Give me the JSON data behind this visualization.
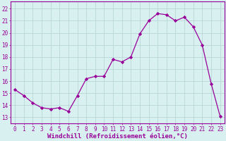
{
  "x": [
    0,
    1,
    2,
    3,
    4,
    5,
    6,
    7,
    8,
    9,
    10,
    11,
    12,
    13,
    14,
    15,
    16,
    17,
    18,
    19,
    20,
    21,
    22,
    23
  ],
  "y": [
    15.3,
    14.8,
    14.2,
    13.8,
    13.7,
    13.8,
    13.5,
    14.8,
    16.2,
    16.4,
    16.4,
    17.8,
    17.6,
    18.0,
    19.9,
    21.0,
    21.6,
    21.5,
    21.0,
    21.3,
    20.5,
    19.0,
    15.8,
    13.1
  ],
  "line_color": "#990099",
  "marker": "D",
  "marker_size": 2.2,
  "bg_color": "#d8f0f0",
  "grid_color": "#b8d8d8",
  "xlabel": "Windchill (Refroidissement éolien,°C)",
  "xlabel_fontsize": 6.5,
  "ylabel_ticks": [
    13,
    14,
    15,
    16,
    17,
    18,
    19,
    20,
    21,
    22
  ],
  "xticks": [
    0,
    1,
    2,
    3,
    4,
    5,
    6,
    7,
    8,
    9,
    10,
    11,
    12,
    13,
    14,
    15,
    16,
    17,
    18,
    19,
    20,
    21,
    22,
    23
  ],
  "ylim": [
    12.5,
    22.6
  ],
  "xlim": [
    -0.5,
    23.5
  ],
  "tick_fontsize": 5.5,
  "tick_color": "#990099",
  "spine_color": "#990099"
}
